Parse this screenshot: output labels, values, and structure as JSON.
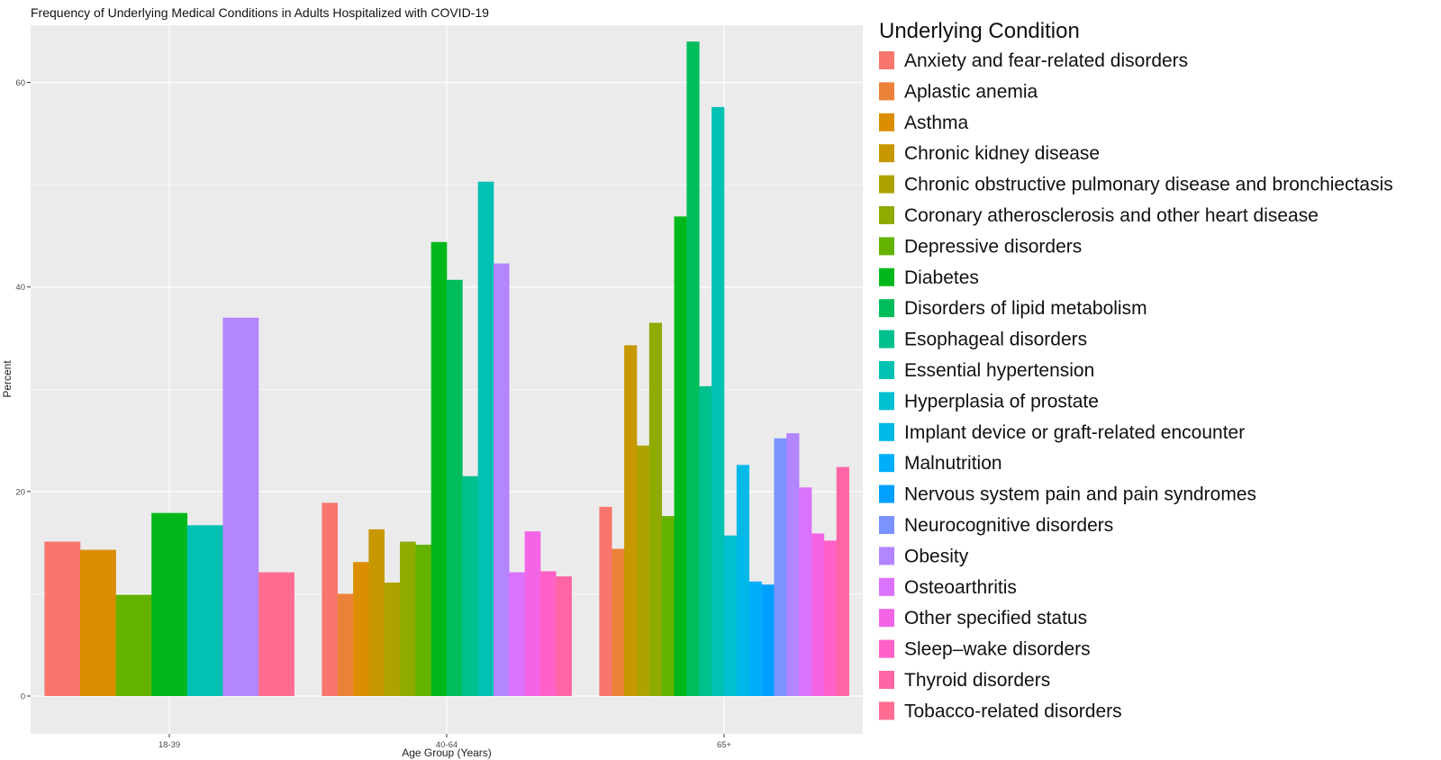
{
  "chart_data": {
    "type": "bar",
    "title": "Frequency of Underlying Medical Conditions in Adults Hospitalized with COVID-19",
    "xlabel": "Age Group (Years)",
    "ylabel": "Percent",
    "ylim": [
      -3.7,
      65.6
    ],
    "yticks": [
      0,
      20,
      40,
      60
    ],
    "grid": true,
    "legend_title": "Underlying Condition",
    "legend_position": "right",
    "categories": [
      "18-39",
      "40-64",
      "65+"
    ],
    "conditions": [
      {
        "name": "Anxiety and fear-related disorders",
        "color": "#F8766D"
      },
      {
        "name": "Aplastic anemia",
        "color": "#EC8239"
      },
      {
        "name": "Asthma",
        "color": "#DB8E00"
      },
      {
        "name": "Chronic kidney disease",
        "color": "#C79800"
      },
      {
        "name": "Chronic obstructive pulmonary disease and bronchiectasis",
        "color": "#AEA200"
      },
      {
        "name": "Coronary atherosclerosis and other heart disease",
        "color": "#8FAA00"
      },
      {
        "name": "Depressive disorders",
        "color": "#64B200"
      },
      {
        "name": "Diabetes",
        "color": "#00B81B"
      },
      {
        "name": "Disorders of lipid metabolism",
        "color": "#00BD5C"
      },
      {
        "name": "Esophageal disorders",
        "color": "#00C08E"
      },
      {
        "name": "Essential hypertension",
        "color": "#00C1B2"
      },
      {
        "name": "Hyperplasia of prostate",
        "color": "#00BFD0"
      },
      {
        "name": "Implant device or graft-related encounter",
        "color": "#00B9E8"
      },
      {
        "name": "Malnutrition",
        "color": "#00AEFA"
      },
      {
        "name": "Nervous system pain and pain syndromes",
        "color": "#00A0FF"
      },
      {
        "name": "Neurocognitive disorders",
        "color": "#7B93FF"
      },
      {
        "name": "Obesity",
        "color": "#B385FF"
      },
      {
        "name": "Osteoarthritis",
        "color": "#DB72FB"
      },
      {
        "name": "Other specified status",
        "color": "#F365E6"
      },
      {
        "name": "Sleep–wake disorders",
        "color": "#FF61C9"
      },
      {
        "name": "Thyroid disorders",
        "color": "#FF64A4"
      },
      {
        "name": "Tobacco-related disorders",
        "color": "#FF6C91"
      }
    ],
    "groups": [
      {
        "category": "18-39",
        "bars": [
          {
            "condition": "Anxiety and fear-related disorders",
            "value": 15.1
          },
          {
            "condition": "Asthma",
            "value": 14.3
          },
          {
            "condition": "Depressive disorders",
            "value": 9.9
          },
          {
            "condition": "Diabetes",
            "value": 17.9
          },
          {
            "condition": "Essential hypertension",
            "value": 16.7
          },
          {
            "condition": "Obesity",
            "value": 37.0
          },
          {
            "condition": "Tobacco-related disorders",
            "value": 12.1
          }
        ]
      },
      {
        "category": "40-64",
        "bars": [
          {
            "condition": "Anxiety and fear-related disorders",
            "value": 18.9
          },
          {
            "condition": "Aplastic anemia",
            "value": 10.0
          },
          {
            "condition": "Asthma",
            "value": 13.1
          },
          {
            "condition": "Chronic kidney disease",
            "value": 16.3
          },
          {
            "condition": "Chronic obstructive pulmonary disease and bronchiectasis",
            "value": 11.1
          },
          {
            "condition": "Coronary atherosclerosis and other heart disease",
            "value": 15.1
          },
          {
            "condition": "Depressive disorders",
            "value": 14.8
          },
          {
            "condition": "Diabetes",
            "value": 44.4
          },
          {
            "condition": "Disorders of lipid metabolism",
            "value": 40.7
          },
          {
            "condition": "Esophageal disorders",
            "value": 21.5
          },
          {
            "condition": "Essential hypertension",
            "value": 50.3
          },
          {
            "condition": "Obesity",
            "value": 42.3
          },
          {
            "condition": "Osteoarthritis",
            "value": 12.1
          },
          {
            "condition": "Other specified status",
            "value": 16.1
          },
          {
            "condition": "Sleep–wake disorders",
            "value": 12.2
          },
          {
            "condition": "Thyroid disorders",
            "value": 11.7
          }
        ]
      },
      {
        "category": "65+",
        "bars": [
          {
            "condition": "Anxiety and fear-related disorders",
            "value": 18.5
          },
          {
            "condition": "Aplastic anemia",
            "value": 14.4
          },
          {
            "condition": "Chronic kidney disease",
            "value": 34.3
          },
          {
            "condition": "Chronic obstructive pulmonary disease and bronchiectasis",
            "value": 24.5
          },
          {
            "condition": "Coronary atherosclerosis and other heart disease",
            "value": 36.5
          },
          {
            "condition": "Depressive disorders",
            "value": 17.6
          },
          {
            "condition": "Diabetes",
            "value": 46.9
          },
          {
            "condition": "Disorders of lipid metabolism",
            "value": 64.0
          },
          {
            "condition": "Esophageal disorders",
            "value": 30.3
          },
          {
            "condition": "Essential hypertension",
            "value": 57.6
          },
          {
            "condition": "Hyperplasia of prostate",
            "value": 15.7
          },
          {
            "condition": "Implant device or graft-related encounter",
            "value": 22.6
          },
          {
            "condition": "Malnutrition",
            "value": 11.2
          },
          {
            "condition": "Nervous system pain and pain syndromes",
            "value": 10.9
          },
          {
            "condition": "Neurocognitive disorders",
            "value": 25.2
          },
          {
            "condition": "Obesity",
            "value": 25.7
          },
          {
            "condition": "Osteoarthritis",
            "value": 20.4
          },
          {
            "condition": "Other specified status",
            "value": 15.9
          },
          {
            "condition": "Sleep–wake disorders",
            "value": 15.2
          },
          {
            "condition": "Thyroid disorders",
            "value": 22.4
          }
        ]
      }
    ]
  }
}
